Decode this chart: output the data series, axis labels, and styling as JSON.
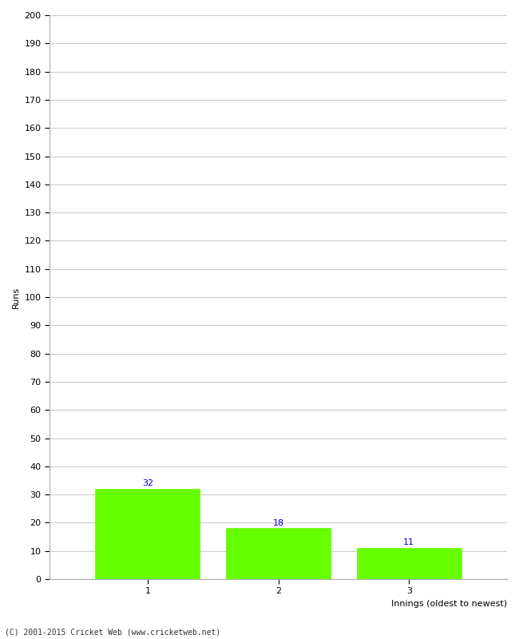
{
  "categories": [
    "1",
    "2",
    "3"
  ],
  "values": [
    32,
    18,
    11
  ],
  "bar_color": "#66ff00",
  "bar_edge_color": "#66ff00",
  "ylabel": "Runs",
  "xlabel": "Innings (oldest to newest)",
  "ylim": [
    0,
    200
  ],
  "yticks": [
    0,
    10,
    20,
    30,
    40,
    50,
    60,
    70,
    80,
    90,
    100,
    110,
    120,
    130,
    140,
    150,
    160,
    170,
    180,
    190,
    200
  ],
  "label_color": "#0000cc",
  "label_fontsize": 8,
  "tick_fontsize": 8,
  "axis_label_fontsize": 8,
  "footer": "(C) 2001-2015 Cricket Web (www.cricketweb.net)",
  "background_color": "#ffffff",
  "grid_color": "#cccccc",
  "bar_width": 0.8,
  "spine_color": "#aaaaaa"
}
